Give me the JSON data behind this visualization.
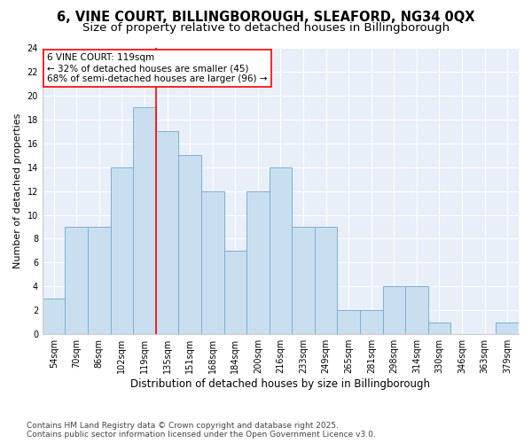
{
  "title1": "6, VINE COURT, BILLINGBOROUGH, SLEAFORD, NG34 0QX",
  "title2": "Size of property relative to detached houses in Billingborough",
  "xlabel": "Distribution of detached houses by size in Billingborough",
  "ylabel": "Number of detached properties",
  "categories": [
    "54sqm",
    "70sqm",
    "86sqm",
    "102sqm",
    "119sqm",
    "135sqm",
    "151sqm",
    "168sqm",
    "184sqm",
    "200sqm",
    "216sqm",
    "233sqm",
    "249sqm",
    "265sqm",
    "281sqm",
    "298sqm",
    "314sqm",
    "330sqm",
    "346sqm",
    "363sqm",
    "379sqm"
  ],
  "values": [
    3,
    9,
    9,
    14,
    19,
    17,
    15,
    12,
    7,
    12,
    14,
    9,
    9,
    2,
    2,
    4,
    4,
    1,
    0,
    0,
    1
  ],
  "bar_color": "#c9dff0",
  "bar_edge_color": "#7bafd4",
  "red_line_x": 4.5,
  "annotation_line1": "6 VINE COURT: 119sqm",
  "annotation_line2": "← 32% of detached houses are smaller (45)",
  "annotation_line3": "68% of semi-detached houses are larger (96) →",
  "annotation_box_color": "white",
  "annotation_box_edge": "red",
  "ylim": [
    0,
    24
  ],
  "yticks": [
    0,
    2,
    4,
    6,
    8,
    10,
    12,
    14,
    16,
    18,
    20,
    22,
    24
  ],
  "bg_color": "#e8eff8",
  "footnote1": "Contains HM Land Registry data © Crown copyright and database right 2025.",
  "footnote2": "Contains public sector information licensed under the Open Government Licence v3.0.",
  "title1_fontsize": 10.5,
  "title2_fontsize": 9.5,
  "xlabel_fontsize": 8.5,
  "ylabel_fontsize": 8,
  "tick_fontsize": 7,
  "annotation_fontsize": 7.5,
  "footnote_fontsize": 6.5
}
